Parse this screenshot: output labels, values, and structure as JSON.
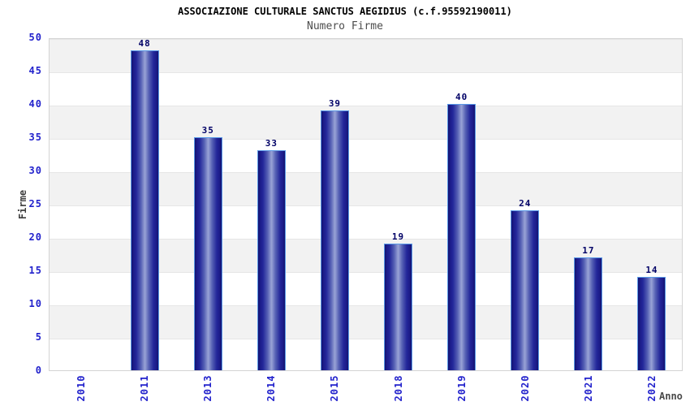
{
  "chart_data": {
    "type": "bar",
    "title": "ASSOCIAZIONE CULTURALE SANCTUS AEGIDIUS (c.f.95592190011)",
    "subtitle": "Numero Firme",
    "xlabel": "Anno",
    "ylabel": "Firme",
    "categories": [
      "2010",
      "2011",
      "2013",
      "2014",
      "2015",
      "2018",
      "2019",
      "2020",
      "2021",
      "2022"
    ],
    "values": [
      0,
      48,
      35,
      33,
      39,
      19,
      40,
      24,
      17,
      14
    ],
    "value_labels_shown": [
      "48",
      "35",
      "33",
      "39",
      "19",
      "40",
      "24",
      "17",
      "14"
    ],
    "ylim": [
      0,
      50
    ],
    "ytick_step": 5,
    "yticks": [
      0,
      5,
      10,
      15,
      20,
      25,
      30,
      35,
      40,
      45,
      50
    ],
    "grid": "alternating-horizontal-bands",
    "legend_position": "none",
    "colors": {
      "bar_edge_dark": "#13136f",
      "bar_center_light": "#99a3d6",
      "bar_border": "#5a9ae8",
      "value_label": "#000066",
      "tick_label": "#2222cc",
      "band_gray": "#f2f2f2",
      "band_white": "#ffffff",
      "plot_border": "#d4d4d4",
      "title_color": "#000000",
      "subtitle_color": "#4d4d4d",
      "axis_title_color": "#404040"
    }
  }
}
